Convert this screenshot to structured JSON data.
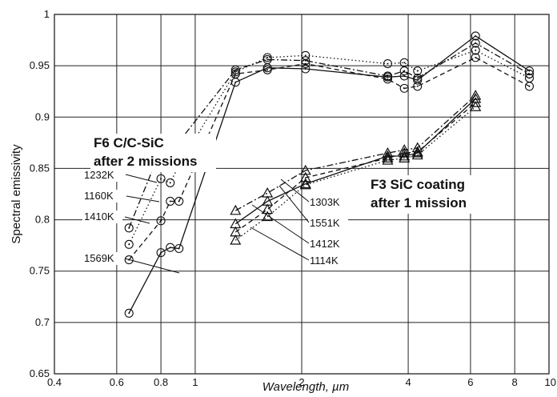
{
  "chart_data": {
    "type": "line",
    "title": "",
    "xlabel": "Wavelength, µm",
    "ylabel": "Spectral emissivity",
    "xscale": "log",
    "xlim": [
      0.4,
      10
    ],
    "ylim": [
      0.65,
      1.0
    ],
    "grid": true,
    "x_ticks": [
      0.4,
      0.6,
      0.8,
      1,
      2,
      4,
      6,
      8,
      10
    ],
    "x_tick_labels": [
      "0.4",
      "0.6",
      "0.8",
      "1",
      "2",
      "4",
      "6",
      "8",
      "10"
    ],
    "y_ticks": [
      0.65,
      0.7,
      0.75,
      0.8,
      0.85,
      0.9,
      0.95,
      1.0
    ],
    "y_tick_labels": [
      "0.65",
      "0.7",
      "0.75",
      "0.8",
      "0.85",
      "0.9",
      "0.95",
      "1"
    ],
    "annotations": [
      {
        "id": "f6",
        "lines": [
          "F6 C/C-SiC",
          "after 2 missions"
        ]
      },
      {
        "id": "f3",
        "lines": [
          "F3 SiC coating",
          "after 1 mission"
        ]
      }
    ],
    "series": [
      {
        "name": "1232K",
        "group": "F6 C/C-SiC",
        "marker": "circle",
        "dash": "dashdot",
        "x": [
          0.65,
          0.8,
          0.85,
          0.9,
          1.3,
          1.6,
          2.05,
          3.5,
          3.9,
          4.25,
          6.2,
          8.8
        ],
        "y": [
          0.792,
          0.869,
          0.874,
          0.876,
          0.946,
          0.956,
          0.955,
          0.94,
          0.945,
          0.938,
          0.972,
          0.942
        ]
      },
      {
        "name": "1160K",
        "group": "F6 C/C-SiC",
        "marker": "circle",
        "dash": "dotted",
        "x": [
          0.65,
          0.8,
          0.85,
          0.9,
          1.3,
          1.6,
          2.05,
          3.5,
          3.9,
          4.25,
          6.2,
          8.8
        ],
        "y": [
          0.776,
          0.84,
          0.836,
          0.853,
          0.944,
          0.958,
          0.96,
          0.952,
          0.953,
          0.945,
          0.965,
          0.938
        ]
      },
      {
        "name": "1410K",
        "group": "F6 C/C-SiC",
        "marker": "circle",
        "dash": "dashed",
        "x": [
          0.65,
          0.8,
          0.85,
          0.9,
          1.3,
          1.6,
          2.05,
          3.5,
          3.9,
          4.25,
          6.2,
          8.8
        ],
        "y": [
          0.761,
          0.799,
          0.818,
          0.818,
          0.942,
          0.946,
          0.952,
          0.937,
          0.928,
          0.93,
          0.958,
          0.93
        ]
      },
      {
        "name": "1569K",
        "group": "F6 C/C-SiC",
        "marker": "circle",
        "dash": "solid",
        "x": [
          0.65,
          0.8,
          0.85,
          0.9,
          1.3,
          1.6,
          2.05,
          3.5,
          3.9,
          4.25,
          6.2,
          8.8
        ],
        "y": [
          0.709,
          0.768,
          0.773,
          0.772,
          0.934,
          0.948,
          0.947,
          0.939,
          0.94,
          0.936,
          0.979,
          0.945
        ]
      },
      {
        "name": "1303K",
        "group": "F3 SiC coating",
        "marker": "triangle",
        "dash": "dashdot",
        "x": [
          1.3,
          1.6,
          2.05,
          3.5,
          3.9,
          4.25,
          6.2
        ],
        "y": [
          0.809,
          0.826,
          0.848,
          0.865,
          0.868,
          0.87,
          0.921
        ]
      },
      {
        "name": "1551K",
        "group": "F3 SiC coating",
        "marker": "triangle",
        "dash": "solid",
        "x": [
          1.3,
          1.6,
          2.05,
          3.5,
          3.9,
          4.25,
          6.2
        ],
        "y": [
          0.796,
          0.818,
          0.835,
          0.862,
          0.862,
          0.865,
          0.918
        ]
      },
      {
        "name": "1412K",
        "group": "F3 SiC coating",
        "marker": "triangle",
        "dash": "dashed",
        "x": [
          1.3,
          1.6,
          2.05,
          3.5,
          3.9,
          4.25,
          6.2
        ],
        "y": [
          0.788,
          0.81,
          0.841,
          0.86,
          0.865,
          0.866,
          0.914
        ]
      },
      {
        "name": "1114K",
        "group": "F3 SiC coating",
        "marker": "triangle",
        "dash": "dotted",
        "x": [
          1.3,
          1.6,
          2.05,
          3.5,
          3.9,
          4.25,
          6.2
        ],
        "y": [
          0.78,
          0.803,
          0.834,
          0.858,
          0.86,
          0.863,
          0.91
        ]
      }
    ]
  }
}
